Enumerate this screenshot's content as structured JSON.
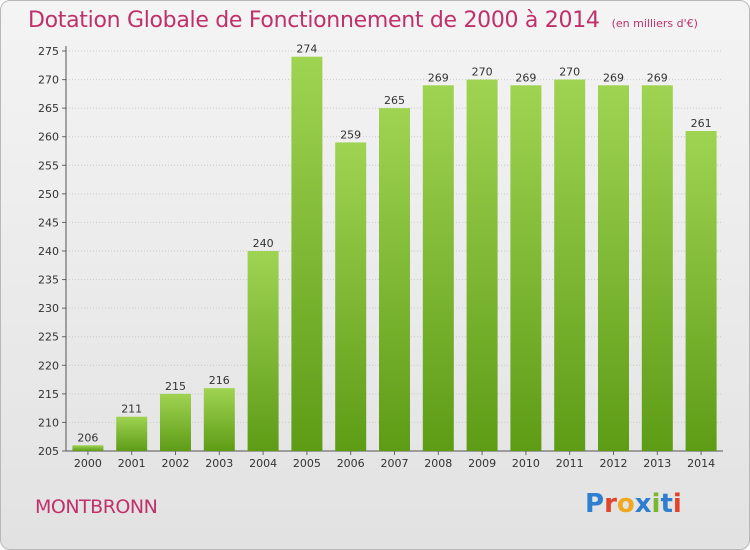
{
  "header": {
    "title": "Dotation Globale de Fonctionnement de 2000 à 2014",
    "unit": "(en milliers d'€)"
  },
  "footer": {
    "town": "MONTBRONN",
    "logo": "Proxiti"
  },
  "colors": {
    "title": "#c0306b",
    "bar_top": "#9fd452",
    "bar_bottom": "#5e9c16",
    "logo": [
      "#2f7fd0",
      "#e0452a",
      "#f0a820",
      "#2f7fd0",
      "#7ab62e",
      "#2f7fd0",
      "#e0452a"
    ]
  },
  "chart_data": {
    "type": "bar",
    "title": "Dotation Globale de Fonctionnement de 2000 à 2014",
    "subtitle": "(en milliers d'€)",
    "categories": [
      "2000",
      "2001",
      "2002",
      "2003",
      "2004",
      "2005",
      "2006",
      "2007",
      "2008",
      "2009",
      "2010",
      "2011",
      "2012",
      "2013",
      "2014"
    ],
    "values": [
      206,
      211,
      215,
      216,
      240,
      274,
      259,
      265,
      269,
      270,
      269,
      270,
      269,
      269,
      261
    ],
    "ylim": [
      205,
      275
    ],
    "yticks": [
      205,
      210,
      215,
      220,
      225,
      230,
      235,
      240,
      245,
      250,
      255,
      260,
      265,
      270,
      275
    ],
    "grid": true,
    "legend": "none"
  }
}
